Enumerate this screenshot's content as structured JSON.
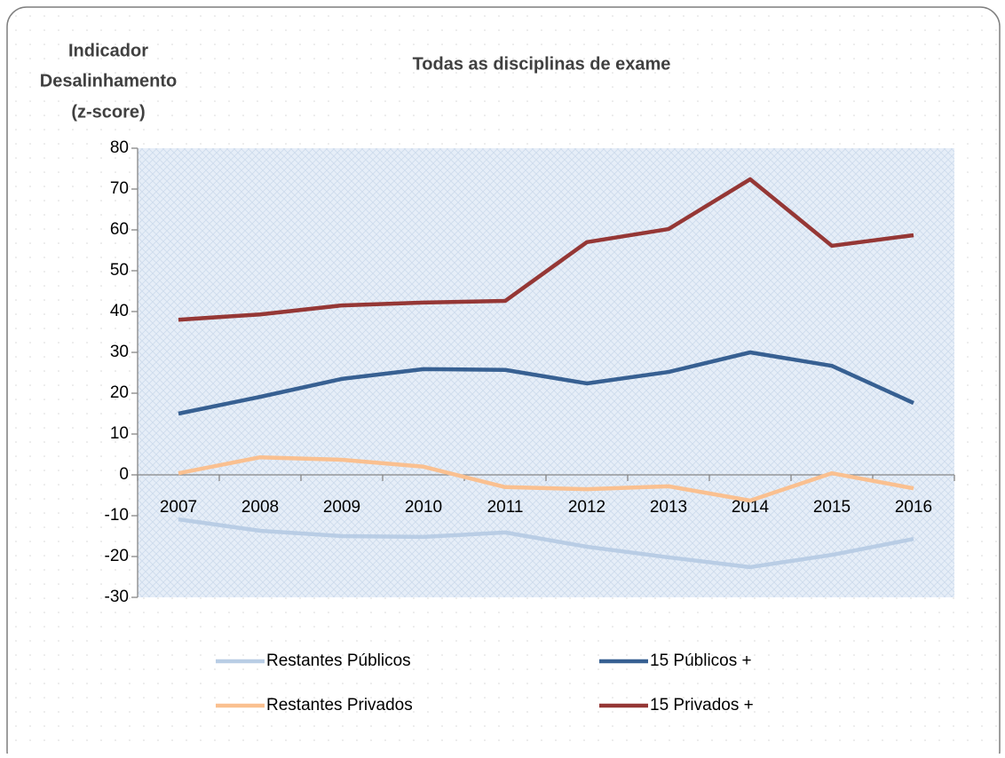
{
  "chart_data": {
    "type": "line",
    "title": "Todas as disciplinas de exame",
    "ylabel": [
      "Indicador",
      "Desalinhamento",
      "(z-score)"
    ],
    "categories": [
      "2007",
      "2008",
      "2009",
      "2010",
      "2011",
      "2012",
      "2013",
      "2014",
      "2015",
      "2016"
    ],
    "series": [
      {
        "name": "Restantes Públicos",
        "color": "#b9cde5",
        "values": [
          -10.9,
          -13.7,
          -15,
          -15.2,
          -14.1,
          -17.6,
          -20.2,
          -22.6,
          -19.6,
          -15.7
        ]
      },
      {
        "name": "15 Públicos +",
        "color": "#376092",
        "values": [
          15,
          19.1,
          23.5,
          25.9,
          25.7,
          22.4,
          25.2,
          30,
          26.7,
          17.6
        ]
      },
      {
        "name": "Restantes Privados",
        "color": "#fac090",
        "values": [
          0.4,
          4.3,
          3.7,
          2,
          -3,
          -3.5,
          -2.8,
          -6.3,
          0.4,
          -3.3
        ]
      },
      {
        "name": "15 Privados +",
        "color": "#953735",
        "values": [
          38,
          39.3,
          41.5,
          42.2,
          42.6,
          57,
          60.2,
          72.4,
          56.1,
          58.7
        ]
      }
    ],
    "ylim": [
      -30,
      80
    ],
    "yticks": [
      -30,
      -20,
      -10,
      0,
      10,
      20,
      30,
      40,
      50,
      60,
      70,
      80
    ]
  }
}
